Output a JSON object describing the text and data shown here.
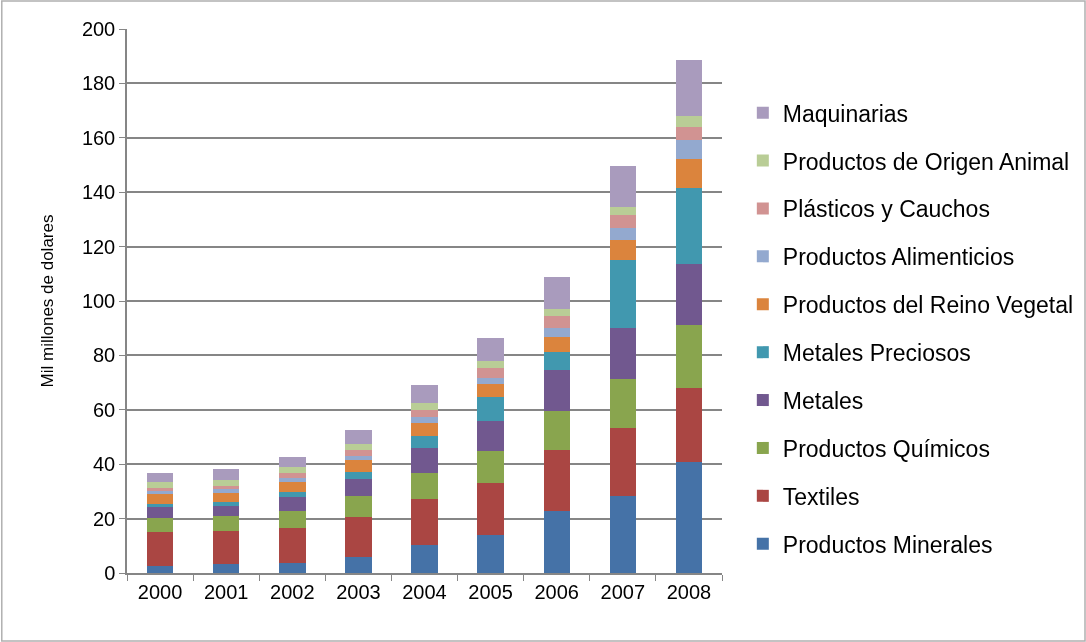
{
  "chart_data": {
    "type": "bar",
    "stacked": true,
    "ylabel": "Mil millones de dolares",
    "categories": [
      "2000",
      "2001",
      "2002",
      "2003",
      "2004",
      "2005",
      "2006",
      "2007",
      "2008"
    ],
    "ylim": [
      0,
      200
    ],
    "yticks": [
      0,
      20,
      40,
      60,
      80,
      100,
      120,
      140,
      160,
      180,
      200
    ],
    "grid": "y",
    "legend": "right",
    "series": [
      {
        "name": "Productos Minerales",
        "color": "#4572a7",
        "values": [
          2.6,
          3.4,
          3.6,
          5.8,
          10.3,
          14.0,
          22.8,
          28.3,
          40.7
        ]
      },
      {
        "name": "Textiles",
        "color": "#aa4643",
        "values": [
          12.4,
          11.9,
          13.0,
          14.7,
          16.9,
          19.0,
          22.5,
          25.0,
          27.3
        ]
      },
      {
        "name": "Productos Químicos",
        "color": "#89a54e",
        "values": [
          5.1,
          5.7,
          6.3,
          7.8,
          9.7,
          11.7,
          14.3,
          18.1,
          23.3
        ]
      },
      {
        "name": "Metales",
        "color": "#71588f",
        "values": [
          4.1,
          3.5,
          5.0,
          6.3,
          9.0,
          11.1,
          15.0,
          18.7,
          22.3
        ]
      },
      {
        "name": "Metales Preciosos",
        "color": "#4198af",
        "values": [
          1.3,
          1.5,
          1.8,
          2.7,
          4.4,
          8.9,
          6.6,
          25.0,
          28.0
        ]
      },
      {
        "name": "Productos del Reino Vegetal",
        "color": "#db843d",
        "values": [
          3.5,
          3.3,
          3.9,
          4.2,
          4.8,
          4.7,
          5.4,
          7.5,
          10.6
        ]
      },
      {
        "name": "Productos Alimenticios",
        "color": "#93a9cf",
        "values": [
          1.3,
          1.6,
          1.4,
          1.7,
          2.3,
          2.4,
          3.5,
          4.4,
          7.0
        ]
      },
      {
        "name": "Plásticos y Cauchos",
        "color": "#d19392",
        "values": [
          1.0,
          1.2,
          1.7,
          2.1,
          2.7,
          3.5,
          4.4,
          4.5,
          4.9
        ]
      },
      {
        "name": "Productos de Origen Animal",
        "color": "#b9cd96",
        "values": [
          2.1,
          2.1,
          2.1,
          2.2,
          2.4,
          2.5,
          2.6,
          3.1,
          3.8
        ]
      },
      {
        "name": "Maquinarias",
        "color": "#a99bbd",
        "values": [
          3.5,
          4.0,
          4.0,
          5.1,
          6.8,
          8.7,
          11.6,
          15.2,
          20.7
        ]
      }
    ]
  }
}
